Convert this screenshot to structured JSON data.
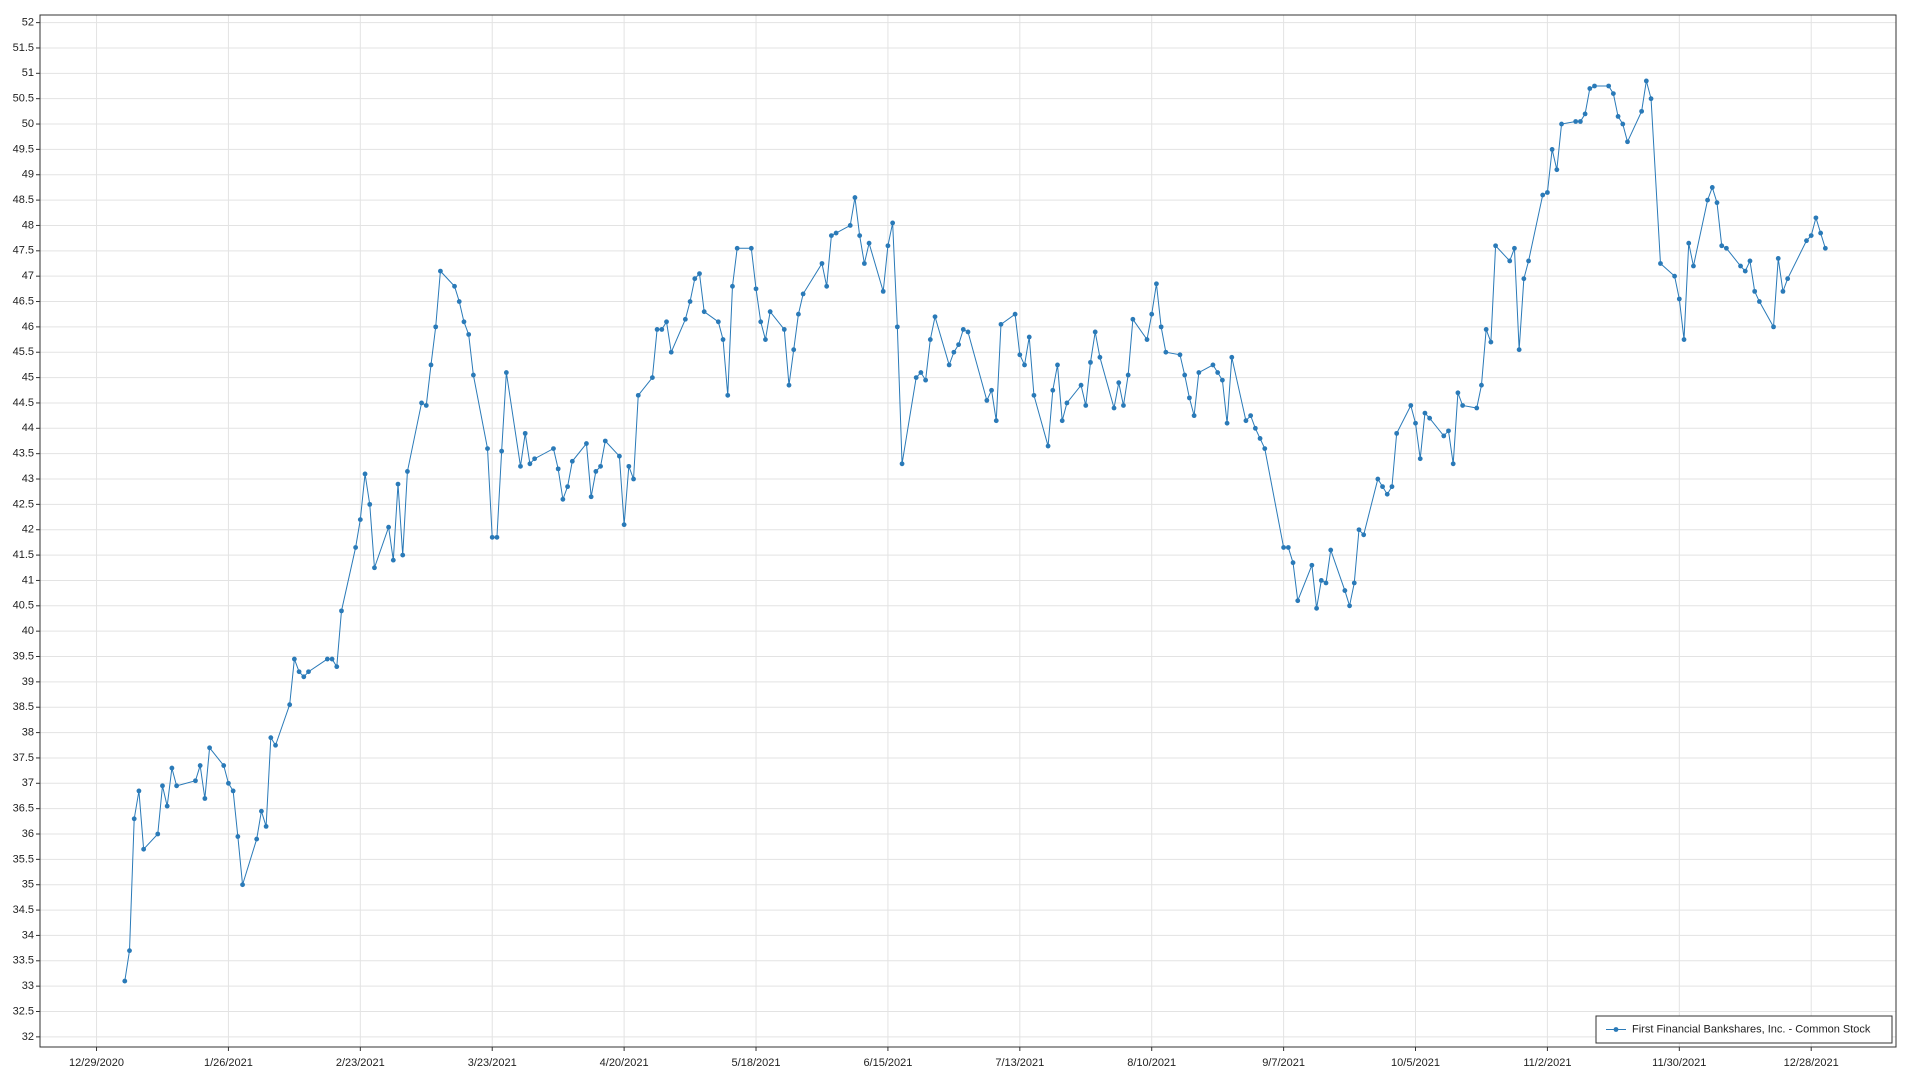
{
  "chart_data": {
    "type": "line",
    "x": [
      "2021-01-04",
      "2021-01-05",
      "2021-01-06",
      "2021-01-07",
      "2021-01-08",
      "2021-01-11",
      "2021-01-12",
      "2021-01-13",
      "2021-01-14",
      "2021-01-15",
      "2021-01-19",
      "2021-01-20",
      "2021-01-21",
      "2021-01-22",
      "2021-01-25",
      "2021-01-26",
      "2021-01-27",
      "2021-01-28",
      "2021-01-29",
      "2021-02-01",
      "2021-02-02",
      "2021-02-03",
      "2021-02-04",
      "2021-02-05",
      "2021-02-08",
      "2021-02-09",
      "2021-02-10",
      "2021-02-11",
      "2021-02-12",
      "2021-02-16",
      "2021-02-17",
      "2021-02-18",
      "2021-02-19",
      "2021-02-22",
      "2021-02-23",
      "2021-02-24",
      "2021-02-25",
      "2021-02-26",
      "2021-03-01",
      "2021-03-02",
      "2021-03-03",
      "2021-03-04",
      "2021-03-05",
      "2021-03-08",
      "2021-03-09",
      "2021-03-10",
      "2021-03-11",
      "2021-03-12",
      "2021-03-15",
      "2021-03-16",
      "2021-03-17",
      "2021-03-18",
      "2021-03-19",
      "2021-03-22",
      "2021-03-23",
      "2021-03-24",
      "2021-03-25",
      "2021-03-26",
      "2021-03-29",
      "2021-03-30",
      "2021-03-31",
      "2021-04-01",
      "2021-04-05",
      "2021-04-06",
      "2021-04-07",
      "2021-04-08",
      "2021-04-09",
      "2021-04-12",
      "2021-04-13",
      "2021-04-14",
      "2021-04-15",
      "2021-04-16",
      "2021-04-19",
      "2021-04-20",
      "2021-04-21",
      "2021-04-22",
      "2021-04-23",
      "2021-04-26",
      "2021-04-27",
      "2021-04-28",
      "2021-04-29",
      "2021-04-30",
      "2021-05-03",
      "2021-05-04",
      "2021-05-05",
      "2021-05-06",
      "2021-05-07",
      "2021-05-10",
      "2021-05-11",
      "2021-05-12",
      "2021-05-13",
      "2021-05-14",
      "2021-05-17",
      "2021-05-18",
      "2021-05-19",
      "2021-05-20",
      "2021-05-21",
      "2021-05-24",
      "2021-05-25",
      "2021-05-26",
      "2021-05-27",
      "2021-05-28",
      "2021-06-01",
      "2021-06-02",
      "2021-06-03",
      "2021-06-04",
      "2021-06-07",
      "2021-06-08",
      "2021-06-09",
      "2021-06-10",
      "2021-06-11",
      "2021-06-14",
      "2021-06-15",
      "2021-06-16",
      "2021-06-17",
      "2021-06-18",
      "2021-06-21",
      "2021-06-22",
      "2021-06-23",
      "2021-06-24",
      "2021-06-25",
      "2021-06-28",
      "2021-06-29",
      "2021-06-30",
      "2021-07-01",
      "2021-07-02",
      "2021-07-06",
      "2021-07-07",
      "2021-07-08",
      "2021-07-09",
      "2021-07-12",
      "2021-07-13",
      "2021-07-14",
      "2021-07-15",
      "2021-07-16",
      "2021-07-19",
      "2021-07-20",
      "2021-07-21",
      "2021-07-22",
      "2021-07-23",
      "2021-07-26",
      "2021-07-27",
      "2021-07-28",
      "2021-07-29",
      "2021-07-30",
      "2021-08-02",
      "2021-08-03",
      "2021-08-04",
      "2021-08-05",
      "2021-08-06",
      "2021-08-09",
      "2021-08-10",
      "2021-08-11",
      "2021-08-12",
      "2021-08-13",
      "2021-08-16",
      "2021-08-17",
      "2021-08-18",
      "2021-08-19",
      "2021-08-20",
      "2021-08-23",
      "2021-08-24",
      "2021-08-25",
      "2021-08-26",
      "2021-08-27",
      "2021-08-30",
      "2021-08-31",
      "2021-09-01",
      "2021-09-02",
      "2021-09-03",
      "2021-09-07",
      "2021-09-08",
      "2021-09-09",
      "2021-09-10",
      "2021-09-13",
      "2021-09-14",
      "2021-09-15",
      "2021-09-16",
      "2021-09-17",
      "2021-09-20",
      "2021-09-21",
      "2021-09-22",
      "2021-09-23",
      "2021-09-24",
      "2021-09-27",
      "2021-09-28",
      "2021-09-29",
      "2021-09-30",
      "2021-10-01",
      "2021-10-04",
      "2021-10-05",
      "2021-10-06",
      "2021-10-07",
      "2021-10-08",
      "2021-10-11",
      "2021-10-12",
      "2021-10-13",
      "2021-10-14",
      "2021-10-15",
      "2021-10-18",
      "2021-10-19",
      "2021-10-20",
      "2021-10-21",
      "2021-10-22",
      "2021-10-25",
      "2021-10-26",
      "2021-10-27",
      "2021-10-28",
      "2021-10-29",
      "2021-11-01",
      "2021-11-02",
      "2021-11-03",
      "2021-11-04",
      "2021-11-05",
      "2021-11-08",
      "2021-11-09",
      "2021-11-10",
      "2021-11-11",
      "2021-11-12",
      "2021-11-15",
      "2021-11-16",
      "2021-11-17",
      "2021-11-18",
      "2021-11-19",
      "2021-11-22",
      "2021-11-23",
      "2021-11-24",
      "2021-11-26",
      "2021-11-29",
      "2021-11-30",
      "2021-12-01",
      "2021-12-02",
      "2021-12-03",
      "2021-12-06",
      "2021-12-07",
      "2021-12-08",
      "2021-12-09",
      "2021-12-10",
      "2021-12-13",
      "2021-12-14",
      "2021-12-15",
      "2021-12-16",
      "2021-12-17",
      "2021-12-20",
      "2021-12-21",
      "2021-12-22",
      "2021-12-23",
      "2021-12-27",
      "2021-12-28",
      "2021-12-29",
      "2021-12-30",
      "2021-12-31"
    ],
    "series": [
      {
        "name": "First Financial Bankshares, Inc. - Common Stock",
        "color": "#2a7ab8",
        "values": [
          33.1,
          33.7,
          36.3,
          36.85,
          35.7,
          36.0,
          36.95,
          36.55,
          37.3,
          36.95,
          37.05,
          37.35,
          36.7,
          37.7,
          37.35,
          37.0,
          36.85,
          35.95,
          35.0,
          35.9,
          36.45,
          36.15,
          37.9,
          37.75,
          38.55,
          39.45,
          39.2,
          39.1,
          39.2,
          39.45,
          39.45,
          39.3,
          40.4,
          41.65,
          42.2,
          43.1,
          42.5,
          41.25,
          42.05,
          41.4,
          42.9,
          41.5,
          43.15,
          44.5,
          44.45,
          45.25,
          46.0,
          47.1,
          46.8,
          46.5,
          46.1,
          45.85,
          45.05,
          43.6,
          41.85,
          41.85,
          43.55,
          45.1,
          43.25,
          43.9,
          43.3,
          43.4,
          43.6,
          43.2,
          42.6,
          42.85,
          43.35,
          43.7,
          42.65,
          43.15,
          43.25,
          43.75,
          43.45,
          42.1,
          43.25,
          43.0,
          44.65,
          45.0,
          45.95,
          45.95,
          46.1,
          45.5,
          46.15,
          46.5,
          46.95,
          47.05,
          46.3,
          46.1,
          45.75,
          44.65,
          46.8,
          47.55,
          47.55,
          46.75,
          46.1,
          45.75,
          46.3,
          45.95,
          44.85,
          45.55,
          46.25,
          46.65,
          47.25,
          46.8,
          47.8,
          47.85,
          48.0,
          48.55,
          47.8,
          47.25,
          47.65,
          46.7,
          47.6,
          48.05,
          46.0,
          43.3,
          45.0,
          45.1,
          44.95,
          45.75,
          46.2,
          45.25,
          45.5,
          45.65,
          45.95,
          45.9,
          44.55,
          44.75,
          44.15,
          46.05,
          46.25,
          45.45,
          45.25,
          45.8,
          44.65,
          43.65,
          44.75,
          45.25,
          44.15,
          44.5,
          44.85,
          44.45,
          45.3,
          45.9,
          45.4,
          44.4,
          44.9,
          44.45,
          45.05,
          46.15,
          45.75,
          46.25,
          46.85,
          46.0,
          45.5,
          45.45,
          45.05,
          44.6,
          44.25,
          45.1,
          45.25,
          45.1,
          44.95,
          44.1,
          45.4,
          44.15,
          44.25,
          44.0,
          43.8,
          43.6,
          41.65,
          41.65,
          41.35,
          40.6,
          41.3,
          40.45,
          41.0,
          40.95,
          41.6,
          40.8,
          40.5,
          40.95,
          42.0,
          41.9,
          43.0,
          42.85,
          42.7,
          42.85,
          43.9,
          44.45,
          44.1,
          43.4,
          44.3,
          44.2,
          43.85,
          43.95,
          43.3,
          44.7,
          44.45,
          44.4,
          44.85,
          45.95,
          45.7,
          47.6,
          47.3,
          47.55,
          45.55,
          46.95,
          47.3,
          48.6,
          48.65,
          49.5,
          49.1,
          50.0,
          50.05,
          50.05,
          50.2,
          50.7,
          50.75,
          50.75,
          50.6,
          50.15,
          50.0,
          49.65,
          50.25,
          50.85,
          50.5,
          47.25,
          47.0,
          46.55,
          45.75,
          47.65,
          47.2,
          48.5,
          48.75,
          48.45,
          47.6,
          47.55,
          47.2,
          47.1,
          47.3,
          46.7,
          46.5,
          46.0,
          47.35,
          46.7,
          46.95,
          47.7,
          47.8,
          48.15,
          47.85,
          47.55
        ]
      }
    ],
    "xlim": [
      "2020-12-17",
      "2022-01-15"
    ],
    "xticks": [
      {
        "value": "2020-12-29",
        "label": "12/29/2020"
      },
      {
        "value": "2021-01-26",
        "label": "1/26/2021"
      },
      {
        "value": "2021-02-23",
        "label": "2/23/2021"
      },
      {
        "value": "2021-03-23",
        "label": "3/23/2021"
      },
      {
        "value": "2021-04-20",
        "label": "4/20/2021"
      },
      {
        "value": "2021-05-18",
        "label": "5/18/2021"
      },
      {
        "value": "2021-06-15",
        "label": "6/15/2021"
      },
      {
        "value": "2021-07-13",
        "label": "7/13/2021"
      },
      {
        "value": "2021-08-10",
        "label": "8/10/2021"
      },
      {
        "value": "2021-09-07",
        "label": "9/7/2021"
      },
      {
        "value": "2021-10-05",
        "label": "10/5/2021"
      },
      {
        "value": "2021-11-02",
        "label": "11/2/2021"
      },
      {
        "value": "2021-11-30",
        "label": "11/30/2021"
      },
      {
        "value": "2021-12-28",
        "label": "12/28/2021"
      }
    ],
    "ylim": [
      31.8,
      52.15
    ],
    "yticks": [
      32,
      32.5,
      33,
      33.5,
      34,
      34.5,
      35,
      35.5,
      36,
      36.5,
      37,
      37.5,
      38,
      38.5,
      39,
      39.5,
      40,
      40.5,
      41,
      41.5,
      42,
      42.5,
      43,
      43.5,
      44,
      44.5,
      45,
      45.5,
      46,
      46.5,
      47,
      47.5,
      48,
      48.5,
      49,
      49.5,
      50,
      50.5,
      51,
      51.5,
      52
    ],
    "grid": true,
    "legend": "lower right"
  }
}
